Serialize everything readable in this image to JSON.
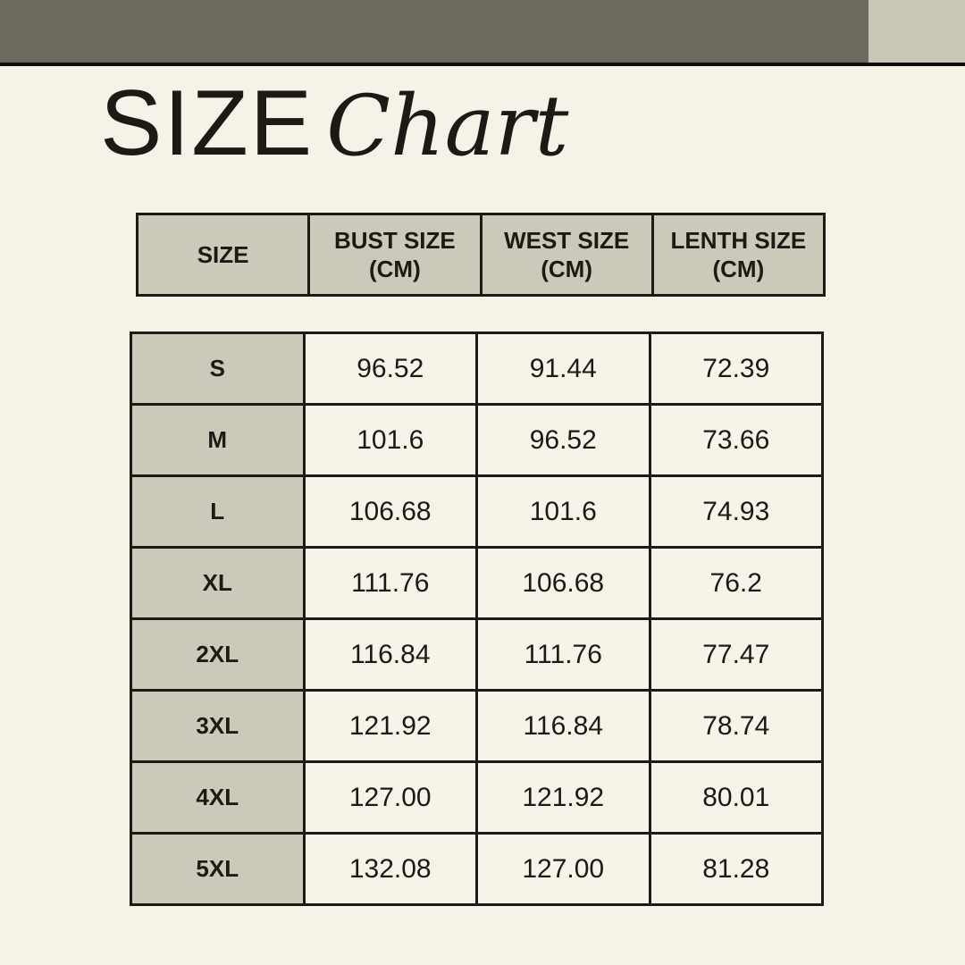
{
  "title": {
    "main": "SIZE",
    "script": "Chart"
  },
  "colors": {
    "bar": "#6b695c",
    "accent": "#cbc7b8",
    "line": "#0f0e0b",
    "bg": "#f6f2e7",
    "cell": "#ccc8ba",
    "cellLight": "#f7f3e8",
    "border": "#1c1a14",
    "ink": "#1c1a14"
  },
  "size_table": {
    "headers": [
      {
        "line1": "SIZE",
        "line2": ""
      },
      {
        "line1": "BUST SIZE",
        "line2": "(CM)"
      },
      {
        "line1": "WEST SIZE",
        "line2": "(CM)"
      },
      {
        "line1": "LENTH SIZE",
        "line2": "(CM)"
      }
    ]
  },
  "chart_data": {
    "type": "table",
    "title": "SIZE Chart",
    "units": "cm",
    "columns": [
      "SIZE",
      "BUST SIZE (CM)",
      "WEST SIZE (CM)",
      "LENTH SIZE (CM)"
    ],
    "rows": [
      [
        "S",
        "96.52",
        "91.44",
        "72.39"
      ],
      [
        "M",
        "101.6",
        "96.52",
        "73.66"
      ],
      [
        "L",
        "106.68",
        "101.6",
        "74.93"
      ],
      [
        "XL",
        "111.76",
        "106.68",
        "76.2"
      ],
      [
        "2XL",
        "116.84",
        "111.76",
        "77.47"
      ],
      [
        "3XL",
        "121.92",
        "116.84",
        "78.74"
      ],
      [
        "4XL",
        "127.00",
        "121.92",
        "80.01"
      ],
      [
        "5XL",
        "132.08",
        "127.00",
        "81.28"
      ]
    ]
  }
}
